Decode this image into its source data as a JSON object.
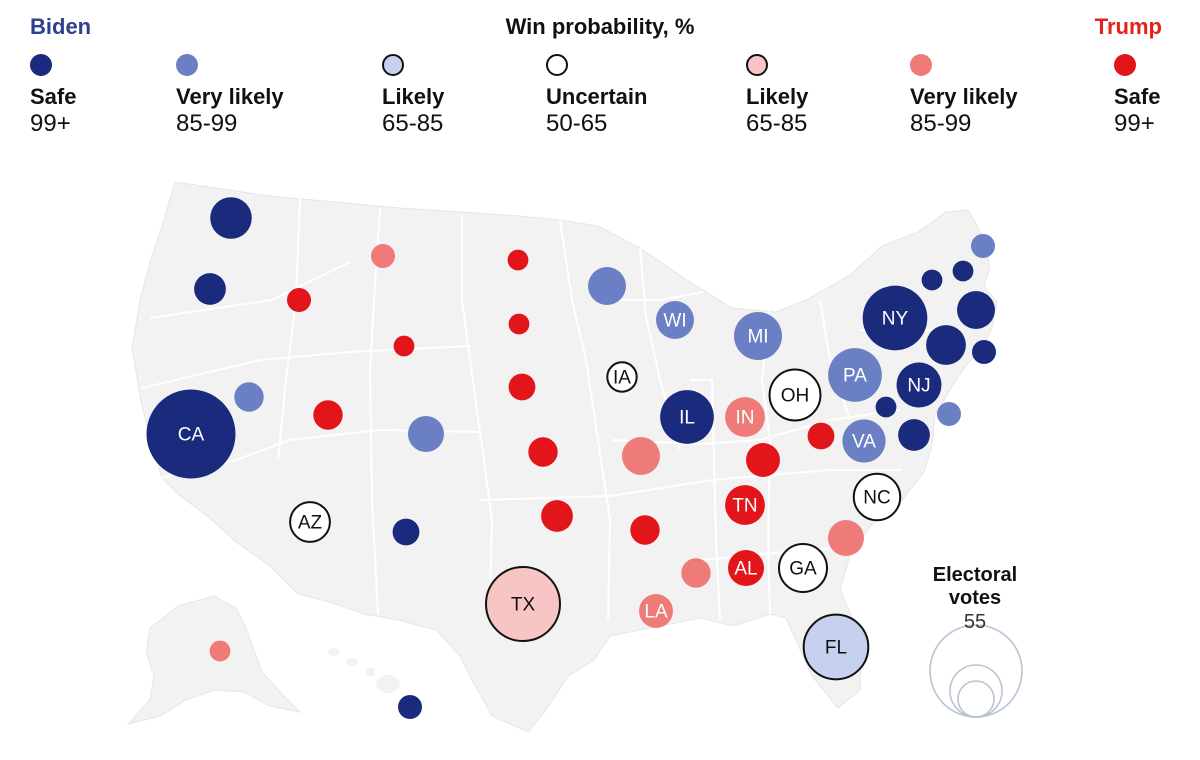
{
  "legend": {
    "left_label": "Biden",
    "right_label": "Trump",
    "title": "Win probability, %",
    "left_color": "#2e3f8f",
    "right_color": "#e2231a",
    "items": [
      {
        "category": "Safe",
        "range": "99+",
        "fill": "#1a2a7c",
        "stroke": "none"
      },
      {
        "category": "Very likely",
        "range": "85-99",
        "fill": "#6b7fc4",
        "stroke": "none"
      },
      {
        "category": "Likely",
        "range": "65-85",
        "fill": "#c5d1ee",
        "stroke": "#111111"
      },
      {
        "category": "Uncertain",
        "range": "50-65",
        "fill": "#ffffff",
        "stroke": "#111111"
      },
      {
        "category": "Likely",
        "range": "65-85",
        "fill": "#f7c6c4",
        "stroke": "#111111"
      },
      {
        "category": "Very likely",
        "range": "85-99",
        "fill": "#ee7b78",
        "stroke": "none"
      },
      {
        "category": "Safe",
        "range": "99+",
        "fill": "#e2151b",
        "stroke": "none"
      }
    ]
  },
  "map": {
    "land_color": "#f2f2f2",
    "border_color": "#ffffff",
    "states": [
      {
        "label": "",
        "rating": "biden_safe",
        "ev": 12
      },
      {
        "label": "",
        "rating": "biden_safe",
        "ev": 7
      },
      {
        "label": "CA",
        "rating": "biden_safe",
        "ev": 55
      },
      {
        "label": "",
        "rating": "biden_very_likely",
        "ev": 6
      },
      {
        "label": "",
        "rating": "trump_very_likely",
        "ev": 4
      },
      {
        "label": "",
        "rating": "trump_safe",
        "ev": 4
      },
      {
        "label": "",
        "rating": "trump_safe",
        "ev": 3
      },
      {
        "label": "",
        "rating": "trump_safe",
        "ev": 6
      },
      {
        "label": "AZ",
        "rating": "uncertain",
        "ev": 11
      },
      {
        "label": "",
        "rating": "biden_very_likely",
        "ev": 9
      },
      {
        "label": "",
        "rating": "biden_safe",
        "ev": 5
      },
      {
        "label": "",
        "rating": "trump_safe",
        "ev": 3
      },
      {
        "label": "",
        "rating": "trump_safe",
        "ev": 3
      },
      {
        "label": "",
        "rating": "trump_safe",
        "ev": 5
      },
      {
        "label": "",
        "rating": "trump_safe",
        "ev": 6
      },
      {
        "label": "",
        "rating": "trump_safe",
        "ev": 7
      },
      {
        "label": "TX",
        "rating": "trump_likely",
        "ev": 38
      },
      {
        "label": "",
        "rating": "biden_very_likely",
        "ev": 10
      },
      {
        "label": "IA",
        "rating": "uncertain",
        "ev": 6
      },
      {
        "label": "",
        "rating": "trump_very_likely",
        "ev": 10
      },
      {
        "label": "",
        "rating": "trump_safe",
        "ev": 6
      },
      {
        "label": "LA",
        "rating": "trump_very_likely",
        "ev": 8
      },
      {
        "label": "WI",
        "rating": "biden_very_likely",
        "ev": 10
      },
      {
        "label": "IL",
        "rating": "biden_safe",
        "ev": 20
      },
      {
        "label": "MI",
        "rating": "biden_very_likely",
        "ev": 16
      },
      {
        "label": "IN",
        "rating": "trump_very_likely",
        "ev": 11
      },
      {
        "label": "OH",
        "rating": "uncertain",
        "ev": 18
      },
      {
        "label": "",
        "rating": "trump_safe",
        "ev": 8
      },
      {
        "label": "TN",
        "rating": "trump_safe",
        "ev": 11
      },
      {
        "label": "",
        "rating": "trump_very_likely",
        "ev": 6
      },
      {
        "label": "AL",
        "rating": "trump_safe",
        "ev": 9
      },
      {
        "label": "GA",
        "rating": "uncertain",
        "ev": 16
      },
      {
        "label": "FL",
        "rating": "biden_likely",
        "ev": 29
      },
      {
        "label": "",
        "rating": "trump_very_likely",
        "ev": 9
      },
      {
        "label": "NC",
        "rating": "uncertain",
        "ev": 15
      },
      {
        "label": "VA",
        "rating": "biden_very_likely",
        "ev": 13
      },
      {
        "label": "",
        "rating": "trump_safe",
        "ev": 5
      },
      {
        "label": "PA",
        "rating": "biden_very_likely",
        "ev": 20
      },
      {
        "label": "NY",
        "rating": "biden_safe",
        "ev": 29
      },
      {
        "label": "NJ",
        "rating": "biden_safe",
        "ev": 14
      },
      {
        "label": "",
        "rating": "biden_safe",
        "ev": 10
      },
      {
        "label": "",
        "rating": "biden_safe",
        "ev": 3
      },
      {
        "label": "",
        "rating": "biden_safe",
        "ev": 3
      },
      {
        "label": "",
        "rating": "biden_safe",
        "ev": 11
      },
      {
        "label": "",
        "rating": "biden_safe",
        "ev": 7
      },
      {
        "label": "",
        "rating": "biden_safe",
        "ev": 4
      },
      {
        "label": "",
        "rating": "biden_safe",
        "ev": 3
      },
      {
        "label": "",
        "rating": "biden_very_likely",
        "ev": 4
      },
      {
        "label": "",
        "rating": "biden_very_likely",
        "ev": 4
      },
      {
        "label": "",
        "rating": "trump_very_likely",
        "ev": 3
      },
      {
        "label": "",
        "rating": "biden_safe",
        "ev": 4
      }
    ]
  },
  "ev_legend": {
    "title_line1": "Electoral",
    "title_line2": "votes",
    "value": "55",
    "circle_color": "#b9c3d3"
  }
}
